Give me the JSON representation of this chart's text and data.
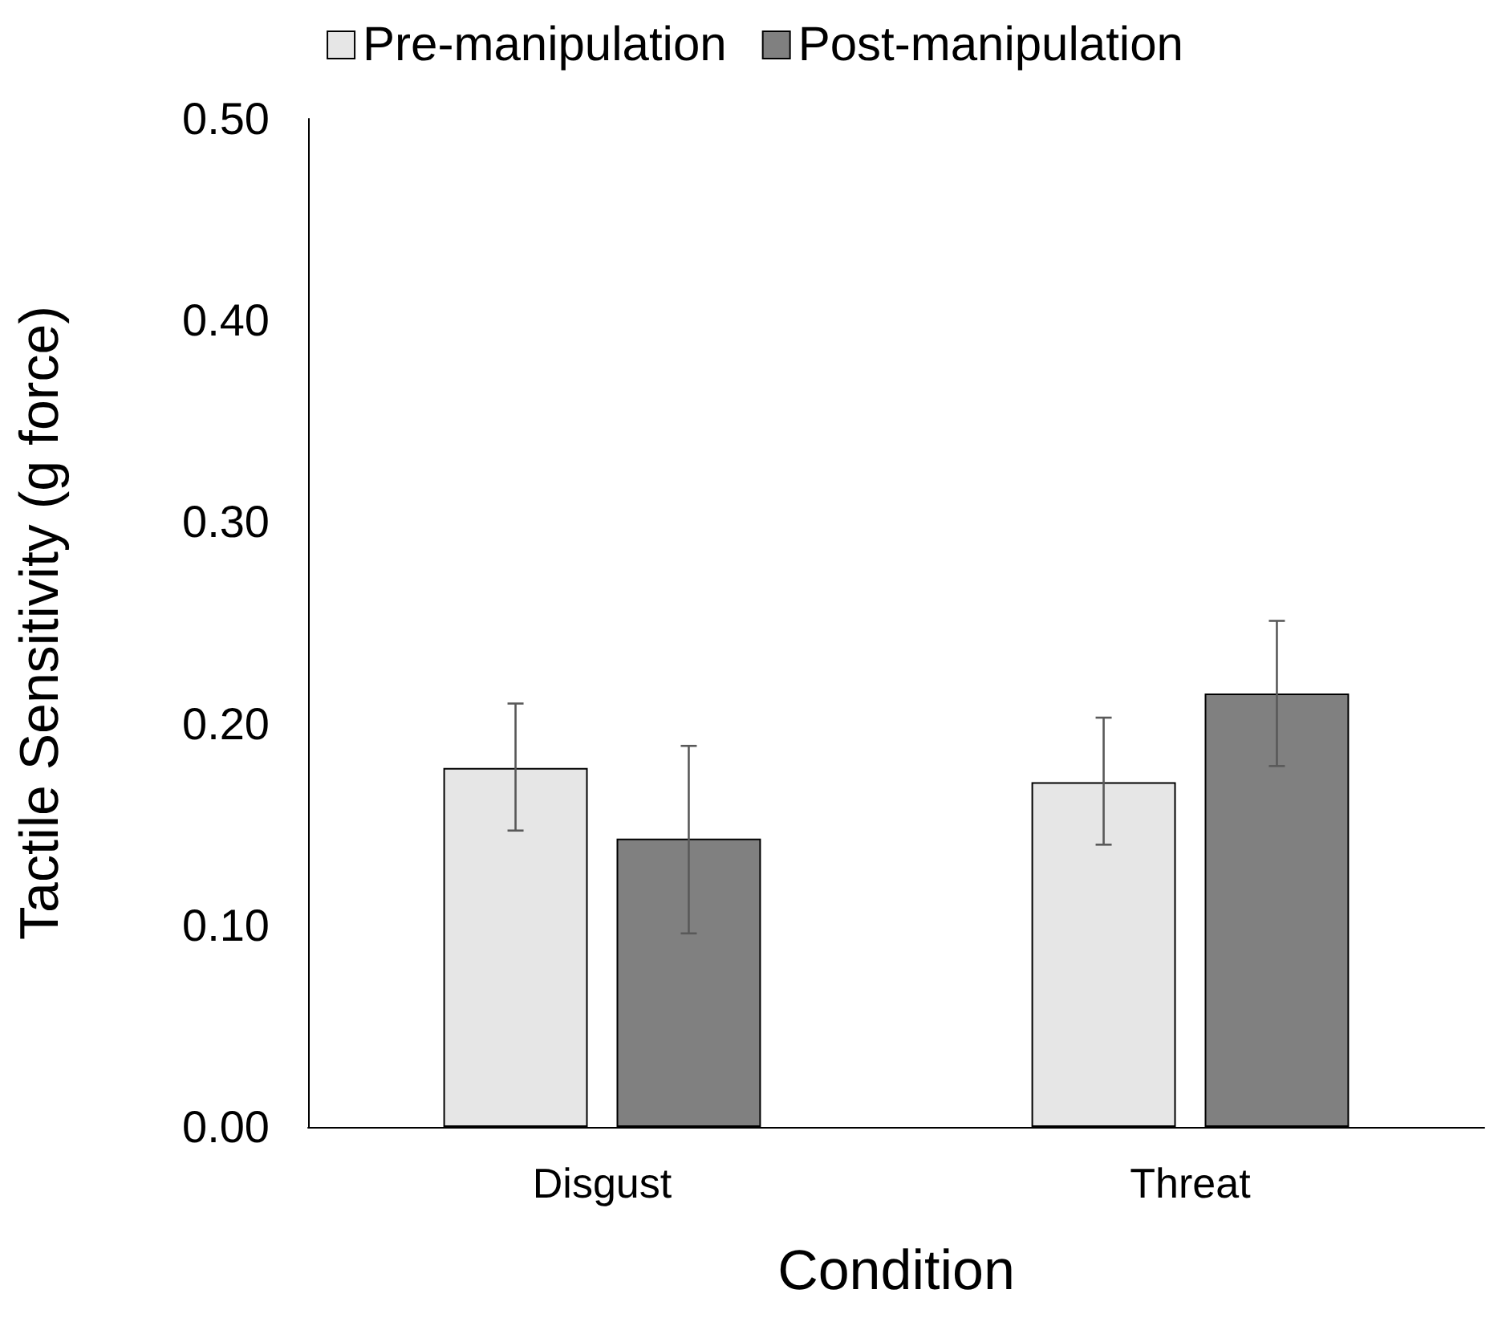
{
  "chart_data": {
    "type": "bar",
    "xlabel": "Condition",
    "ylabel": "Tactile Sensitivity (g force)",
    "categories": [
      "Disgust",
      "Threat"
    ],
    "series": [
      {
        "name": "Pre-manipulation",
        "color": "#e6e6e6",
        "values": [
          0.178,
          0.171
        ],
        "errors": [
          [
            0.147,
            0.21
          ],
          [
            0.14,
            0.203
          ]
        ]
      },
      {
        "name": "Post-manipulation",
        "color": "#808080",
        "values": [
          0.143,
          0.215
        ],
        "errors": [
          [
            0.096,
            0.189
          ],
          [
            0.179,
            0.251
          ]
        ]
      }
    ],
    "ylim": [
      0,
      0.5
    ],
    "yticks": [
      {
        "value": 0,
        "label": "0.00"
      },
      {
        "value": 0.1,
        "label": "0.10"
      },
      {
        "value": 0.2,
        "label": "0.20"
      },
      {
        "value": 0.3,
        "label": "0.30"
      },
      {
        "value": 0.4,
        "label": "0.40"
      },
      {
        "value": 0.5,
        "label": "0.50"
      }
    ],
    "grid": false,
    "legend": "top"
  }
}
